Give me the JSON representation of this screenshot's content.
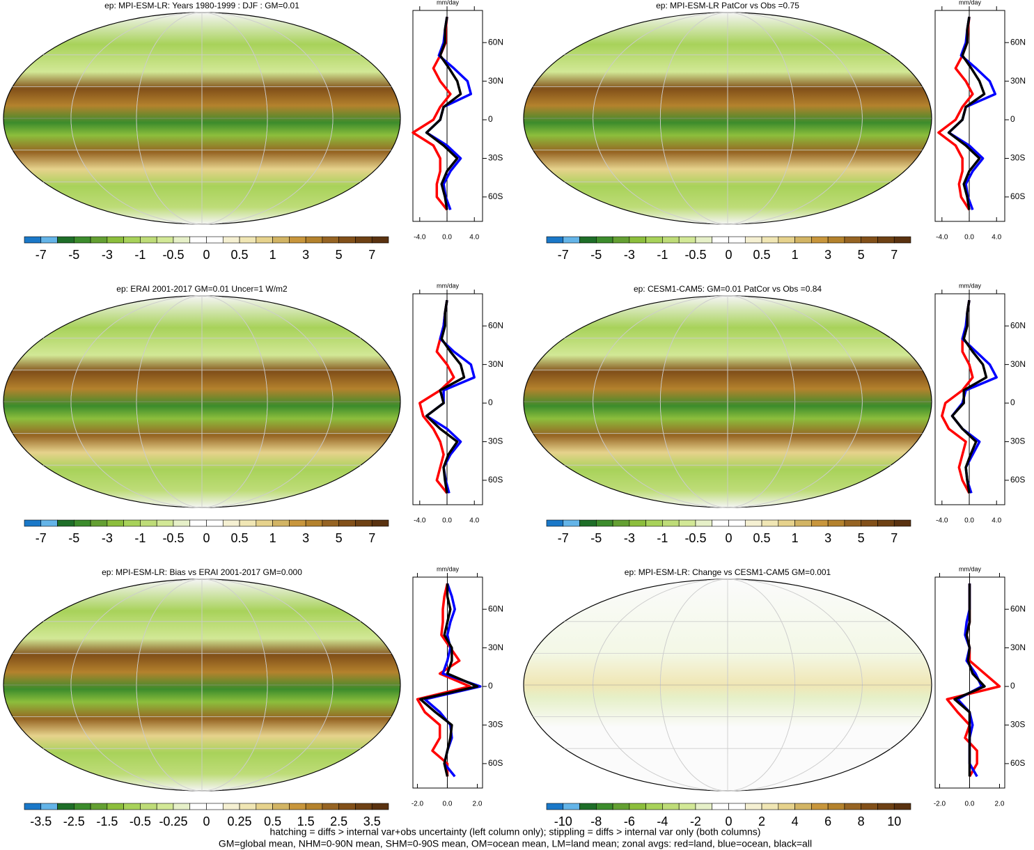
{
  "chart_data": [
    {
      "type": "line",
      "title": "ep: MPI-ESM-LR: Years 1980-1999 : DJF : GM=0.01",
      "x_label": "mm/day",
      "latitudes": [
        80,
        70,
        60,
        50,
        40,
        30,
        20,
        10,
        0,
        -10,
        -20,
        -30,
        -40,
        -50,
        -60,
        -70
      ],
      "xlim": [
        -5,
        5.2
      ],
      "xticks": [
        {
          "value": -4,
          "label": "-4.0"
        },
        {
          "value": 0,
          "label": "0.0"
        },
        {
          "value": 4,
          "label": "4.0"
        }
      ],
      "ylim": [
        -79,
        85
      ],
      "yticks": [
        {
          "value": 60,
          "label": "60N"
        },
        {
          "value": 30,
          "label": "30N"
        },
        0,
        {
          "value": -30,
          "label": "30S"
        },
        {
          "value": -60,
          "label": "60S"
        }
      ],
      "series": [
        {
          "color": "#ff0000",
          "values": [
            0,
            -0.2,
            -0.2,
            -1,
            -2,
            -1,
            0.5,
            -1,
            -2,
            -5,
            -2,
            -1,
            -1,
            -1.5,
            -1.5,
            0
          ]
        },
        {
          "color": "#0000ff",
          "values": [
            0,
            -0.3,
            -0.5,
            -1.2,
            1,
            3,
            3.5,
            -0.5,
            -1,
            -3,
            0,
            2,
            0.5,
            -0.5,
            -0.2,
            0.5
          ]
        },
        {
          "color": "#000000",
          "values": [
            0,
            -0.3,
            -0.3,
            -1,
            0.3,
            1.5,
            2,
            -0.5,
            -1,
            -3,
            -0.5,
            1.5,
            0,
            -0.8,
            -0.3,
            0
          ]
        }
      ],
      "colorbar": {
        "colors": [
          "#1a78c8",
          "#64b4e8",
          "#1e6e28",
          "#3c8c2c",
          "#64a032",
          "#8cbe3c",
          "#a8d25a",
          "#bedc78",
          "#d2e896",
          "#e6f0c8",
          "#ffffff",
          "#ffffff",
          "#f5f0d2",
          "#f0e6b4",
          "#e6d28c",
          "#d2b464",
          "#c8963c",
          "#b4822d",
          "#966423",
          "#825019",
          "#6e4114",
          "#5a3210"
        ],
        "labels": [
          -7,
          -5,
          -3,
          -1,
          -0.5,
          0,
          0.5,
          1,
          3,
          5,
          7
        ]
      }
    },
    {
      "type": "line",
      "title": "ep: MPI-ESM-LR PatCor vs Obs =0.75",
      "x_label": "mm/day",
      "latitudes": [
        80,
        70,
        60,
        50,
        40,
        30,
        20,
        10,
        0,
        -10,
        -20,
        -30,
        -40,
        -50,
        -60,
        -70
      ],
      "xlim": [
        -5,
        5.2
      ],
      "xticks": [
        {
          "value": -4,
          "label": "-4.0"
        },
        {
          "value": 0,
          "label": "0.0"
        },
        {
          "value": 4,
          "label": "4.0"
        }
      ],
      "ylim": [
        -79,
        85
      ],
      "yticks": [
        {
          "value": 60,
          "label": "60N"
        },
        {
          "value": 30,
          "label": "30N"
        },
        0,
        {
          "value": -30,
          "label": "30S"
        },
        {
          "value": -60,
          "label": "60S"
        }
      ],
      "series": [
        {
          "color": "#ff0000",
          "values": [
            0,
            -0.2,
            -0.3,
            -1,
            -2,
            -0.5,
            0.5,
            -1,
            -2,
            -4.5,
            -2,
            -1,
            -1,
            -1.5,
            -1.2,
            0
          ]
        },
        {
          "color": "#0000ff",
          "values": [
            0,
            -0.3,
            -0.5,
            -1.2,
            1,
            3,
            3.8,
            -0.5,
            -1,
            -3,
            0,
            2,
            0.5,
            -0.5,
            -0.2,
            0.5
          ]
        },
        {
          "color": "#000000",
          "values": [
            0,
            -0.3,
            -0.3,
            -1,
            0.3,
            1.5,
            2.2,
            -0.5,
            -1,
            -3,
            -0.5,
            1.5,
            0,
            -0.8,
            -0.3,
            0
          ]
        }
      ],
      "colorbar": {
        "colors": [
          "#1a78c8",
          "#64b4e8",
          "#1e6e28",
          "#3c8c2c",
          "#64a032",
          "#8cbe3c",
          "#a8d25a",
          "#bedc78",
          "#d2e896",
          "#e6f0c8",
          "#ffffff",
          "#ffffff",
          "#f5f0d2",
          "#f0e6b4",
          "#e6d28c",
          "#d2b464",
          "#c8963c",
          "#b4822d",
          "#966423",
          "#825019",
          "#6e4114",
          "#5a3210"
        ],
        "labels": [
          -7,
          -5,
          -3,
          -1,
          -0.5,
          0,
          0.5,
          1,
          3,
          5,
          7
        ]
      }
    },
    {
      "type": "line",
      "title": "ep: ERAI 2001-2017 GM=0.01 Uncer=1 W/m2",
      "x_label": "mm/day",
      "latitudes": [
        80,
        70,
        60,
        50,
        40,
        30,
        20,
        10,
        0,
        -10,
        -20,
        -30,
        -40,
        -50,
        -60,
        -70
      ],
      "xlim": [
        -5,
        5.2
      ],
      "xticks": [
        {
          "value": -4,
          "label": "-4.0"
        },
        {
          "value": 0,
          "label": "0.0"
        },
        {
          "value": 4,
          "label": "4.0"
        }
      ],
      "ylim": [
        -79,
        85
      ],
      "yticks": [
        {
          "value": 60,
          "label": "60N"
        },
        {
          "value": 30,
          "label": "30N"
        },
        0,
        {
          "value": -30,
          "label": "30S"
        },
        {
          "value": -60,
          "label": "60S"
        }
      ],
      "series": [
        {
          "color": "#ff0000",
          "values": [
            0,
            -0.3,
            -0.5,
            -1,
            -1.5,
            0,
            1,
            -1,
            -4,
            -3.5,
            -2,
            -1,
            -0.5,
            -1,
            -1.5,
            0
          ]
        },
        {
          "color": "#0000ff",
          "values": [
            0,
            -0.3,
            -0.5,
            -1,
            1,
            3.5,
            4,
            -0.5,
            -0.5,
            -3,
            0,
            2,
            0.5,
            -0.5,
            -0.2,
            0.3
          ]
        },
        {
          "color": "#000000",
          "values": [
            0,
            -0.3,
            -0.3,
            -0.8,
            0.5,
            2,
            2.5,
            -1,
            -0.5,
            -3,
            -1,
            1.5,
            0.2,
            -0.5,
            -0.3,
            0
          ]
        }
      ],
      "colorbar": {
        "colors": [
          "#1a78c8",
          "#64b4e8",
          "#1e6e28",
          "#3c8c2c",
          "#64a032",
          "#8cbe3c",
          "#a8d25a",
          "#bedc78",
          "#d2e896",
          "#e6f0c8",
          "#ffffff",
          "#ffffff",
          "#f5f0d2",
          "#f0e6b4",
          "#e6d28c",
          "#d2b464",
          "#c8963c",
          "#b4822d",
          "#966423",
          "#825019",
          "#6e4114",
          "#5a3210"
        ],
        "labels": [
          -7,
          -5,
          -3,
          -1,
          -0.5,
          0,
          0.5,
          1,
          3,
          5,
          7
        ]
      }
    },
    {
      "type": "line",
      "title": "ep: CESM1-CAM5: GM=0.01 PatCor vs Obs =0.84",
      "x_label": "mm/day",
      "latitudes": [
        80,
        70,
        60,
        50,
        40,
        30,
        20,
        10,
        0,
        -10,
        -20,
        -30,
        -40,
        -50,
        -60,
        -70
      ],
      "xlim": [
        -5,
        5.2
      ],
      "xticks": [
        {
          "value": -4,
          "label": "-4.0"
        },
        {
          "value": 0,
          "label": "0.0"
        },
        {
          "value": 4,
          "label": "4.0"
        }
      ],
      "ylim": [
        -79,
        85
      ],
      "yticks": [
        {
          "value": 60,
          "label": "60N"
        },
        {
          "value": 30,
          "label": "30N"
        },
        0,
        {
          "value": -30,
          "label": "30S"
        },
        {
          "value": -60,
          "label": "60S"
        }
      ],
      "series": [
        {
          "color": "#ff0000",
          "values": [
            0,
            -0.3,
            -0.3,
            -1,
            -1,
            0,
            0.5,
            -1,
            -3.5,
            -4,
            -3,
            -0.5,
            -1,
            -1.5,
            -1,
            0
          ]
        },
        {
          "color": "#0000ff",
          "values": [
            0,
            -0.3,
            -0.5,
            -1,
            1,
            3,
            4,
            -0.5,
            -1,
            -2.5,
            -1,
            1.5,
            0.5,
            -0.5,
            -0.3,
            0.3
          ]
        },
        {
          "color": "#000000",
          "values": [
            0,
            -0.3,
            -0.3,
            -0.8,
            0.5,
            2,
            2.5,
            -0.8,
            -0.8,
            -2.5,
            -1,
            1,
            0.2,
            -0.5,
            -0.3,
            0
          ]
        }
      ],
      "colorbar": {
        "colors": [
          "#1a78c8",
          "#64b4e8",
          "#1e6e28",
          "#3c8c2c",
          "#64a032",
          "#8cbe3c",
          "#a8d25a",
          "#bedc78",
          "#d2e896",
          "#e6f0c8",
          "#ffffff",
          "#ffffff",
          "#f5f0d2",
          "#f0e6b4",
          "#e6d28c",
          "#d2b464",
          "#c8963c",
          "#b4822d",
          "#966423",
          "#825019",
          "#6e4114",
          "#5a3210"
        ],
        "labels": [
          -7,
          -5,
          -3,
          -1,
          -0.5,
          0,
          0.5,
          1,
          3,
          5,
          7
        ]
      }
    },
    {
      "type": "line",
      "title": "ep: MPI-ESM-LR: Bias vs ERAI 2001-2017 GM=0.000",
      "x_label": "mm/day",
      "latitudes": [
        80,
        70,
        60,
        50,
        40,
        30,
        20,
        10,
        0,
        -10,
        -20,
        -30,
        -40,
        -50,
        -60,
        -70
      ],
      "xlim": [
        -2.3,
        2.35
      ],
      "xticks": [
        {
          "value": -2,
          "label": "-2.0"
        },
        {
          "value": 0,
          "label": "0.0"
        },
        {
          "value": 2,
          "label": "2.0"
        }
      ],
      "ylim": [
        -79,
        85
      ],
      "yticks": [
        {
          "value": 60,
          "label": "60N"
        },
        {
          "value": 30,
          "label": "30N"
        },
        0,
        {
          "value": -30,
          "label": "30S"
        },
        {
          "value": -60,
          "label": "60S"
        }
      ],
      "series": [
        {
          "color": "#ff0000",
          "values": [
            0,
            -0.2,
            -0.3,
            -0.3,
            -0.4,
            0.2,
            0.8,
            -0.5,
            1.5,
            -2,
            -1.5,
            -0.5,
            -0.5,
            -1,
            0,
            0
          ]
        },
        {
          "color": "#0000ff",
          "values": [
            0,
            0.3,
            0.5,
            0.2,
            0,
            0.2,
            0,
            -0.3,
            2.2,
            -1.5,
            -0.5,
            0.2,
            0.3,
            0,
            -0.2,
            0.5
          ]
        },
        {
          "color": "#000000",
          "values": [
            0,
            0,
            0.2,
            0,
            -0.2,
            0.3,
            0.3,
            0,
            2,
            -1.8,
            -0.8,
            0.3,
            0.2,
            0,
            -0.2,
            0
          ]
        }
      ],
      "colorbar": {
        "colors": [
          "#1a78c8",
          "#64b4e8",
          "#1e6e28",
          "#3c8c2c",
          "#64a032",
          "#8cbe3c",
          "#a8d25a",
          "#bedc78",
          "#d2e896",
          "#e6f0c8",
          "#ffffff",
          "#ffffff",
          "#f5f0d2",
          "#f0e6b4",
          "#e6d28c",
          "#d2b464",
          "#c8963c",
          "#b4822d",
          "#966423",
          "#825019",
          "#6e4114",
          "#5a3210"
        ],
        "labels": [
          -3.5,
          -2.5,
          -1.5,
          -0.5,
          -0.25,
          0,
          0.25,
          0.5,
          1.5,
          2.5,
          3.5
        ]
      }
    },
    {
      "type": "line",
      "title": "ep: MPI-ESM-LR: Change vs CESM1-CAM5 GM=0.001",
      "x_label": "mm/day",
      "latitudes": [
        80,
        70,
        60,
        50,
        40,
        30,
        20,
        10,
        0,
        -10,
        -20,
        -30,
        -40,
        -50,
        -60,
        -70
      ],
      "xlim": [
        -2.3,
        2.35
      ],
      "xticks": [
        {
          "value": -2,
          "label": "-2.0"
        },
        {
          "value": 0,
          "label": "0.0"
        },
        {
          "value": 2,
          "label": "2.0"
        }
      ],
      "ylim": [
        -79,
        85
      ],
      "yticks": [
        {
          "value": 60,
          "label": "60N"
        },
        {
          "value": 30,
          "label": "30N"
        },
        0,
        {
          "value": -30,
          "label": "30S"
        },
        {
          "value": -60,
          "label": "60S"
        }
      ],
      "series": [
        {
          "color": "#ff0000",
          "values": [
            0,
            0,
            0,
            0,
            -0.2,
            0,
            0,
            1,
            2,
            -1.5,
            -0.8,
            0,
            -0.3,
            0.5,
            0.5,
            0
          ]
        },
        {
          "color": "#0000ff",
          "values": [
            0,
            0,
            0,
            -0.2,
            -0.3,
            0,
            -0.2,
            0.4,
            0.8,
            -0.8,
            0,
            0.2,
            0,
            0,
            0,
            0.5
          ]
        },
        {
          "color": "#000000",
          "values": [
            0,
            0,
            0,
            0,
            -0.2,
            0,
            -0.1,
            0.2,
            1,
            -1,
            0,
            0,
            0,
            0,
            0,
            0
          ]
        }
      ],
      "colorbar": {
        "colors": [
          "#1a78c8",
          "#64b4e8",
          "#1e6e28",
          "#3c8c2c",
          "#64a032",
          "#8cbe3c",
          "#a8d25a",
          "#bedc78",
          "#d2e896",
          "#e6f0c8",
          "#ffffff",
          "#ffffff",
          "#f5f0d2",
          "#f0e6b4",
          "#e6d28c",
          "#d2b464",
          "#c8963c",
          "#b4822d",
          "#966423",
          "#825019",
          "#6e4114",
          "#5a3210"
        ],
        "labels": [
          -10,
          -8,
          -6,
          -4,
          -2,
          0,
          2,
          4,
          6,
          8,
          10
        ]
      }
    }
  ],
  "notes": [
    "hatching = diffs > internal var+obs uncertainty (left column only); stippling = diffs > internal var only (both columns)",
    "GM=global mean, NHM=0-90N mean, SHM=0-90S mean, OM=ocean mean, LM=land mean; zonal avgs: red=land, blue=ocean, black=all"
  ]
}
